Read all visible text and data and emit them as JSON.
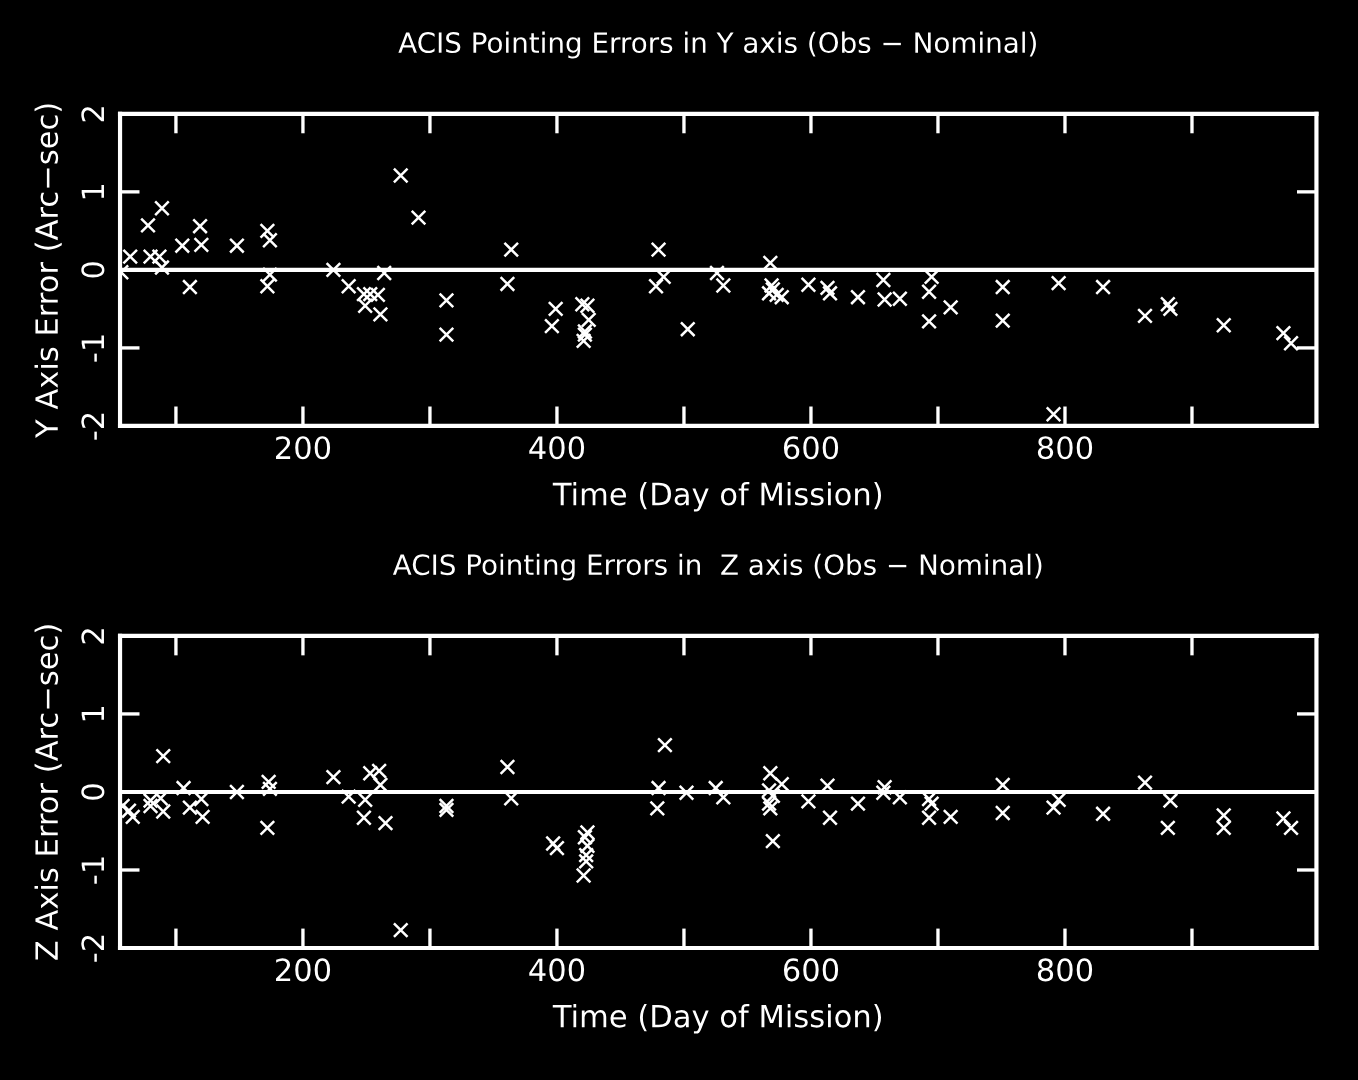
{
  "chart_data": [
    {
      "type": "scatter",
      "title": "ACIS Pointing Errors in Y axis (Obs − Nominal)",
      "xlabel": "Time (Day of Mission)",
      "ylabel": "Y Axis Error (Arc−sec)",
      "xlim": [
        56,
        998
      ],
      "ylim": [
        -2,
        2
      ],
      "xticks": [
        {
          "value": 100,
          "label": null
        },
        200,
        {
          "value": 300,
          "label": null
        },
        400,
        {
          "value": 500,
          "label": null
        },
        600,
        {
          "value": 700,
          "label": null
        },
        800,
        {
          "value": 900,
          "label": null
        }
      ],
      "yticks": [
        -2,
        -1,
        0,
        1,
        2
      ],
      "marker": "cross",
      "grid": false,
      "legend": false,
      "ref_lines": [
        {
          "axis": "y",
          "value": 0,
          "color": "#ffffff"
        }
      ],
      "series": [
        {
          "color": "#ffffff",
          "x": [
            57,
            64,
            78,
            80,
            87,
            89,
            89,
            105,
            111,
            119,
            120,
            148,
            172,
            174,
            172,
            174,
            224,
            236,
            248,
            253,
            249,
            259,
            261,
            264,
            277,
            291,
            313,
            313,
            361,
            364,
            396,
            399,
            420,
            424,
            425,
            422,
            422,
            421,
            478,
            480,
            484,
            503,
            526,
            531,
            568,
            569,
            567,
            573,
            577,
            570,
            598,
            613,
            615,
            637,
            657,
            658,
            670,
            693,
            693,
            695,
            710,
            751,
            751,
            791,
            795,
            830,
            863,
            881,
            883,
            925,
            972,
            978
          ],
          "values": [
            -0.03,
            0.17,
            0.57,
            0.17,
            0.17,
            0.79,
            0.03,
            0.31,
            -0.22,
            0.56,
            0.32,
            0.31,
            0.5,
            0.38,
            -0.21,
            -0.06,
            0,
            -0.21,
            -0.31,
            -0.31,
            -0.46,
            -0.32,
            -0.57,
            -0.04,
            1.21,
            0.67,
            -0.39,
            -0.83,
            -0.18,
            0.26,
            -0.72,
            -0.5,
            -0.44,
            -0.46,
            -0.64,
            -0.79,
            -0.83,
            -0.91,
            -0.21,
            0.26,
            -0.09,
            -0.76,
            -0.04,
            -0.2,
            0.09,
            -0.2,
            -0.3,
            -0.32,
            -0.35,
            -0.25,
            -0.19,
            -0.23,
            -0.3,
            -0.35,
            -0.13,
            -0.38,
            -0.37,
            -0.28,
            -0.66,
            -0.09,
            -0.48,
            -0.22,
            -0.65,
            -1.85,
            -0.17,
            -0.22,
            -0.59,
            -0.44,
            -0.5,
            -0.71,
            -0.81,
            -0.94
          ]
        }
      ]
    },
    {
      "type": "scatter",
      "title": "ACIS Pointing Errors in  Z axis (Obs − Nominal)",
      "xlabel": "Time (Day of Mission)",
      "ylabel": "Z Axis Error (Arc−sec)",
      "xlim": [
        56,
        998
      ],
      "ylim": [
        -2,
        2
      ],
      "xticks": [
        {
          "value": 100,
          "label": null
        },
        200,
        {
          "value": 300,
          "label": null
        },
        400,
        {
          "value": 500,
          "label": null
        },
        600,
        {
          "value": 700,
          "label": null
        },
        800,
        {
          "value": 900,
          "label": null
        }
      ],
      "yticks": [
        -2,
        -1,
        0,
        1,
        2
      ],
      "marker": "cross",
      "grid": false,
      "legend": false,
      "ref_lines": [
        {
          "axis": "y",
          "value": 0,
          "color": "#ffffff"
        }
      ],
      "series": [
        {
          "color": "#ffffff",
          "x": [
            58,
            63,
            66,
            80,
            80,
            88,
            90,
            90,
            106,
            111,
            120,
            121,
            148,
            172,
            173,
            174,
            224,
            236,
            249,
            248,
            253,
            260,
            261,
            265,
            277,
            313,
            313,
            361,
            364,
            397,
            400,
            424,
            422,
            424,
            423,
            423,
            421,
            479,
            480,
            485,
            502,
            525,
            531,
            568,
            567,
            570,
            567,
            568,
            570,
            577,
            598,
            613,
            615,
            637,
            658,
            657,
            670,
            693,
            695,
            693,
            710,
            751,
            751,
            791,
            795,
            830,
            863,
            883,
            881,
            925,
            925,
            972,
            978
          ],
          "values": [
            -0.18,
            -0.24,
            -0.32,
            -0.11,
            -0.18,
            -0.08,
            0.46,
            -0.25,
            0.05,
            -0.2,
            -0.09,
            -0.32,
            0,
            -0.46,
            0.13,
            0.04,
            0.19,
            -0.06,
            -0.1,
            -0.33,
            0.24,
            0.27,
            0.09,
            -0.4,
            -1.77,
            -0.18,
            -0.23,
            0.32,
            -0.08,
            -0.66,
            -0.72,
            -0.52,
            -0.58,
            -0.69,
            -0.81,
            -0.89,
            -1.07,
            -0.21,
            0.05,
            0.6,
            -0.01,
            0.05,
            -0.07,
            0.24,
            0.02,
            -0.05,
            -0.15,
            -0.21,
            -0.63,
            0.1,
            -0.12,
            0.08,
            -0.33,
            -0.15,
            0.06,
            -0.01,
            -0.07,
            -0.09,
            -0.15,
            -0.33,
            -0.32,
            0.09,
            -0.27,
            -0.2,
            -0.1,
            -0.28,
            0.12,
            -0.11,
            -0.46,
            -0.3,
            -0.46,
            -0.34,
            -0.46
          ]
        }
      ]
    }
  ]
}
